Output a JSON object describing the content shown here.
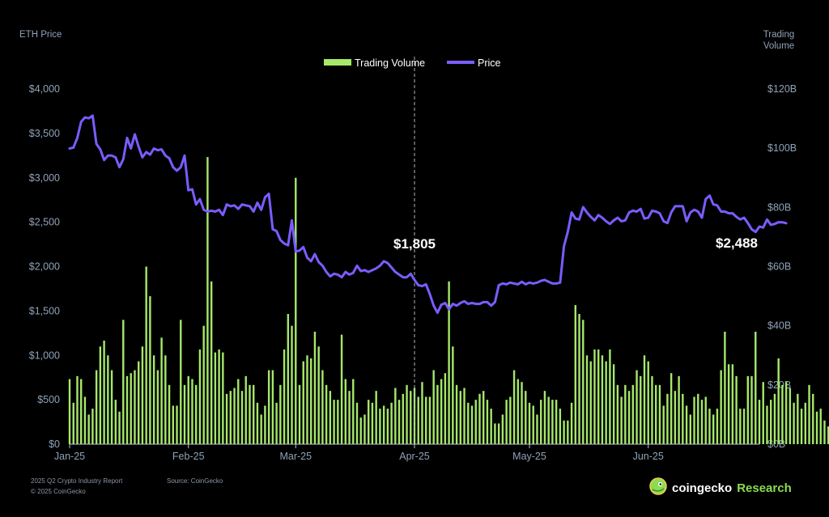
{
  "header": {
    "left_axis_title": "ETH Price",
    "right_axis_title_line1": "Trading",
    "right_axis_title_line2": "Volume"
  },
  "footer": {
    "report": "2025 Q2 Crypto Industry Report",
    "copyright": "© 2025 CoinGecko",
    "source": "Source: CoinGecko",
    "brand_main": "coingecko",
    "brand_sub": "Research"
  },
  "colors": {
    "price": "#7b5cff",
    "volume": "#a5e86a",
    "background": "#000000",
    "axis_text": "#8fa3b8"
  },
  "chart_data": {
    "type": "bar+line",
    "x_start": "2025-01-01",
    "x_end": "2025-06-30",
    "x_ticks": [
      "Jan-25",
      "Feb-25",
      "Mar-25",
      "Apr-25",
      "May-25",
      "Jun-25"
    ],
    "y_left": {
      "label": "ETH Price",
      "ylim": [
        0,
        4000
      ],
      "ticks": [
        "$0",
        "$500",
        "$1,000",
        "$1,500",
        "$2,000",
        "$2,500",
        "$3,000",
        "$3,500",
        "$4,000"
      ]
    },
    "y_right": {
      "label": "Trading Volume",
      "ylim": [
        0,
        120
      ],
      "ticks": [
        "$0B",
        "$20B",
        "$40B",
        "$60B",
        "$80B",
        "$100B",
        "$120B"
      ]
    },
    "legend": [
      "Trading Volume",
      "Price"
    ],
    "legend_position": "top-center",
    "annotations": [
      {
        "label": "$1,805",
        "date": "2025-04-01",
        "marker": "dashed-vertical-line"
      },
      {
        "label": "$2,488",
        "date": "2025-06-30"
      }
    ],
    "series": [
      {
        "name": "Price",
        "axis": "left",
        "values": [
          3330,
          3340,
          3450,
          3630,
          3680,
          3670,
          3700,
          3380,
          3320,
          3200,
          3250,
          3250,
          3230,
          3120,
          3210,
          3450,
          3330,
          3490,
          3350,
          3230,
          3290,
          3260,
          3330,
          3310,
          3320,
          3250,
          3220,
          3120,
          3080,
          3120,
          3250,
          2860,
          2870,
          2700,
          2760,
          2640,
          2620,
          2630,
          2620,
          2640,
          2580,
          2700,
          2680,
          2690,
          2650,
          2700,
          2690,
          2680,
          2620,
          2720,
          2640,
          2780,
          2820,
          2420,
          2400,
          2300,
          2260,
          2240,
          2520,
          2170,
          2180,
          2220,
          2100,
          2060,
          2140,
          2050,
          2010,
          1940,
          1890,
          1920,
          1910,
          1880,
          1940,
          1910,
          1930,
          2010,
          1950,
          1960,
          1940,
          1960,
          1980,
          2010,
          2060,
          2040,
          1990,
          1940,
          1910,
          1880,
          1880,
          1920,
          1850,
          1790,
          1780,
          1800,
          1690,
          1560,
          1480,
          1570,
          1590,
          1520,
          1580,
          1560,
          1590,
          1610,
          1580,
          1590,
          1580,
          1580,
          1600,
          1600,
          1560,
          1600,
          1790,
          1810,
          1800,
          1820,
          1810,
          1800,
          1830,
          1800,
          1820,
          1810,
          1820,
          1840,
          1850,
          1830,
          1810,
          1810,
          1820,
          2230,
          2390,
          2610,
          2540,
          2530,
          2670,
          2610,
          2560,
          2520,
          2580,
          2550,
          2510,
          2480,
          2520,
          2550,
          2510,
          2520,
          2610,
          2630,
          2620,
          2650,
          2540,
          2550,
          2630,
          2620,
          2600,
          2510,
          2490,
          2610,
          2680,
          2680,
          2680,
          2510,
          2610,
          2640,
          2620,
          2550,
          2760,
          2800,
          2700,
          2690,
          2620,
          2620,
          2600,
          2600,
          2560,
          2530,
          2550,
          2490,
          2420,
          2390,
          2450,
          2440,
          2530,
          2470,
          2480,
          2500,
          2499,
          2488
        ],
        "note_kind": "closing price"
      },
      {
        "name": "Trading Volume",
        "axis": "right",
        "values": [
          22,
          14,
          23,
          22,
          16,
          10,
          12,
          25,
          33,
          35,
          30,
          25,
          15,
          11,
          42,
          23,
          24,
          25,
          28,
          33,
          60,
          50,
          30,
          25,
          36,
          30,
          20,
          13,
          13,
          42,
          20,
          23,
          22,
          20,
          32,
          40,
          97,
          55,
          31,
          32,
          31,
          17,
          18,
          19,
          22,
          18,
          23,
          20,
          20,
          14,
          10,
          13,
          25,
          25,
          14,
          20,
          32,
          44,
          40,
          90,
          20,
          28,
          30,
          29,
          38,
          33,
          25,
          20,
          18,
          15,
          15,
          37,
          22,
          18,
          22,
          14,
          9,
          10,
          15,
          14,
          18,
          12,
          13,
          12,
          14,
          19,
          15,
          17,
          20,
          18,
          19,
          16,
          21,
          16,
          16,
          25,
          20,
          22,
          24,
          55,
          33,
          20,
          18,
          19,
          14,
          13,
          15,
          17,
          18,
          15,
          12,
          7,
          7,
          10,
          15,
          16,
          25,
          22,
          21,
          18,
          14,
          13,
          10,
          15,
          18,
          16,
          15,
          15,
          12,
          8,
          8,
          14,
          47,
          44,
          42,
          30,
          28,
          32,
          32,
          30,
          28,
          32,
          27,
          20,
          16,
          20,
          18,
          20,
          25,
          23,
          30,
          28,
          23,
          20,
          20,
          13,
          17,
          24,
          18,
          23,
          17,
          13,
          10,
          16,
          17,
          15,
          16,
          12,
          10,
          12,
          25,
          38,
          27,
          27,
          23,
          12,
          12,
          23,
          23,
          38,
          15,
          21,
          13,
          15,
          17,
          29,
          20,
          21,
          19,
          14,
          17,
          12,
          14,
          20,
          17,
          11,
          12,
          8,
          6
        ]
      }
    ]
  }
}
